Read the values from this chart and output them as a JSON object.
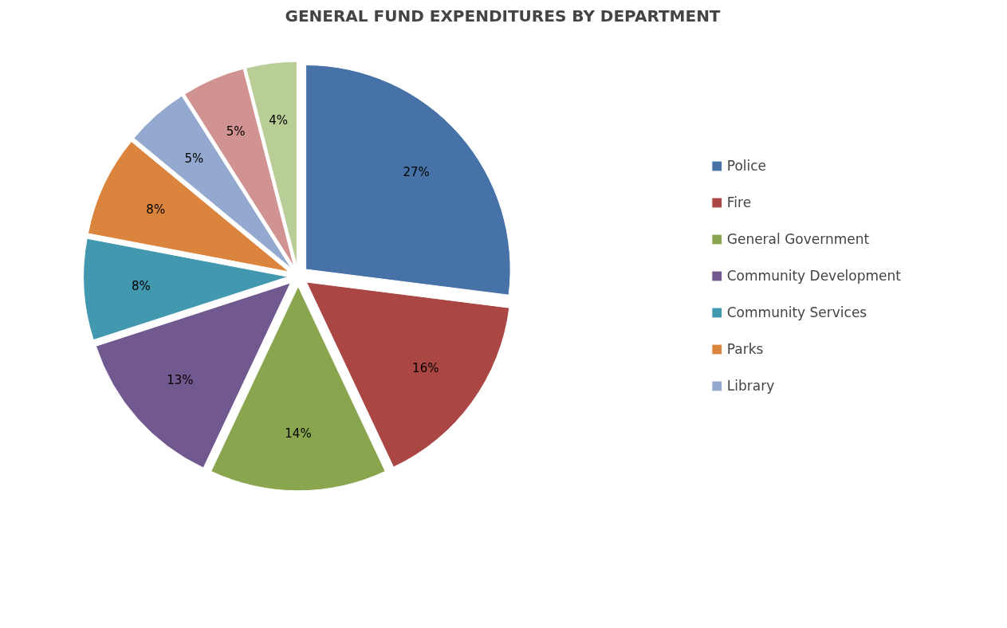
{
  "chart_data": {
    "type": "pie",
    "title": "GENERAL FUND EXPENDITURES BY DEPARTMENT",
    "categories": [
      "Police",
      "Fire",
      "General Government",
      "Community Development",
      "Community Services",
      "Parks",
      "Library",
      null,
      null
    ],
    "values": [
      27,
      16,
      14,
      13,
      8,
      8,
      5,
      5,
      4
    ],
    "colors": [
      "#4672a8",
      "#aa4644",
      "#89a54e",
      "#71588f",
      "#4298af",
      "#db843d",
      "#93a9cf",
      "#d19392",
      "#b9cd96"
    ],
    "value_labels": [
      "27%",
      "16%",
      "14%",
      "13%",
      "8%",
      "8%",
      "5%",
      "5%",
      "4%"
    ],
    "legend": "right"
  }
}
